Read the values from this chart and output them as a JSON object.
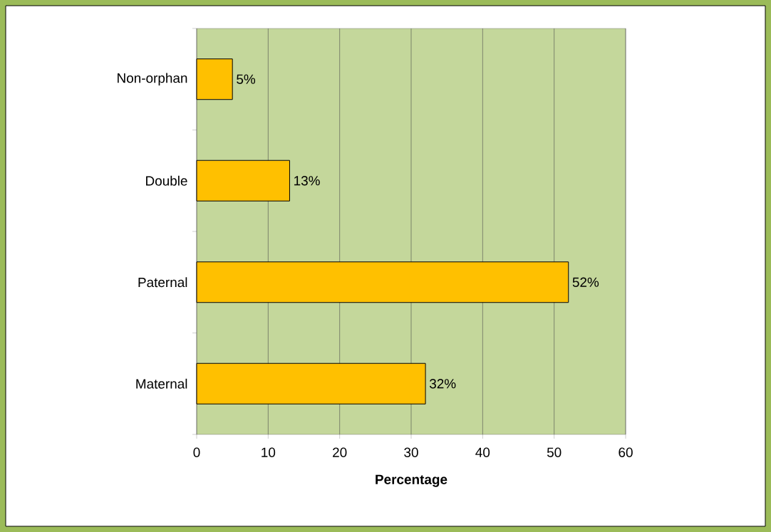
{
  "chart_data": {
    "type": "bar",
    "orientation": "horizontal",
    "xlabel": "Percentage",
    "categories": [
      "Non-orphan",
      "Double",
      "Paternal",
      "Maternal"
    ],
    "values": [
      5,
      13,
      52,
      32
    ],
    "value_labels": [
      "5%",
      "13%",
      "52%",
      "32%"
    ],
    "color": "#ffc000",
    "xlim": [
      0,
      60
    ],
    "xticks": [
      0,
      10,
      20,
      30,
      40,
      50,
      60
    ],
    "grid": "x"
  }
}
